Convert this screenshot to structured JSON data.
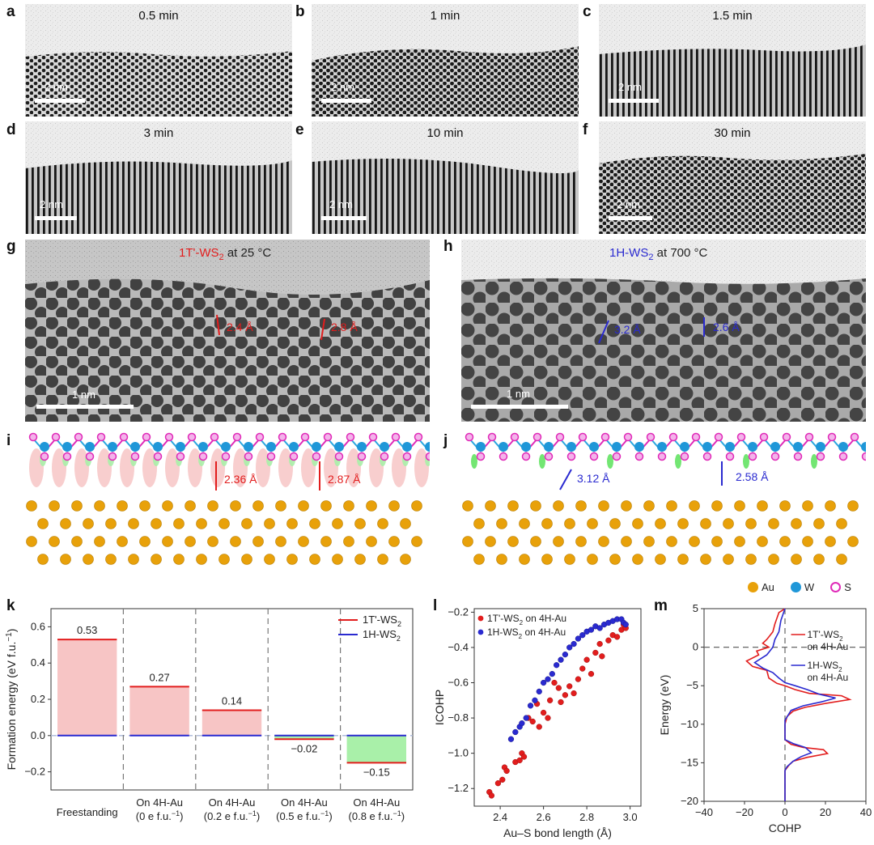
{
  "panels": {
    "a": {
      "letter": "a",
      "time": "0.5 min",
      "scale": "2 nm"
    },
    "b": {
      "letter": "b",
      "time": "1 min",
      "scale": "2 nm"
    },
    "c": {
      "letter": "c",
      "time": "1.5 min",
      "scale": "2 nm"
    },
    "d": {
      "letter": "d",
      "time": "3 min",
      "scale": "2 nm"
    },
    "e": {
      "letter": "e",
      "time": "10 min",
      "scale": "2 nm"
    },
    "f": {
      "letter": "f",
      "time": "30 min",
      "scale": "2 nm"
    },
    "g": {
      "letter": "g",
      "phase": "1T'-WS",
      "phase_sub": "2",
      "temp": " at 25 °C",
      "scale": "1 nm",
      "d1": "2.4 Å",
      "d2": "2.8 Å"
    },
    "h": {
      "letter": "h",
      "phase": "1H-WS",
      "phase_sub": "2",
      "temp": " at 700 °C",
      "scale": "1 nm",
      "d1": "3.2 Å",
      "d2": "2.6 Å"
    },
    "i": {
      "letter": "i",
      "d1": "2.36 Å",
      "d2": "2.87 Å"
    },
    "j": {
      "letter": "j",
      "d1": "3.12 Å",
      "d2": "2.58 Å"
    },
    "k": {
      "letter": "k"
    },
    "l": {
      "letter": "l"
    },
    "m": {
      "letter": "m"
    }
  },
  "atom_legend": [
    {
      "label": "Au",
      "color": "#e8a10a"
    },
    {
      "label": "W",
      "color": "#1f97d8"
    },
    {
      "label": "S",
      "color": "#e02ab8"
    }
  ],
  "colors": {
    "red": "#e21d1d",
    "blue": "#2a2ad0",
    "pink_fill": "#f7c5c5",
    "green_fill": "#a9f0a9"
  },
  "chart_data": [
    {
      "id": "k",
      "type": "bar",
      "ylabel": "Formation energy (eV f.u.",
      "ylabel_sup": "−1",
      "ylabel_end": ")",
      "ylim": [
        -0.3,
        0.7
      ],
      "yticks": [
        "−0.2",
        "0.0",
        "0.2",
        "0.4",
        "0.6"
      ],
      "ytick_values": [
        -0.2,
        0.0,
        0.2,
        0.4,
        0.6
      ],
      "categories": [
        {
          "line1": "Freestanding",
          "line2": "",
          "sup": "",
          "line2_end": ""
        },
        {
          "line1": "On 4H-Au",
          "line2": "(0 e f.u.",
          "sup": "−1",
          "line2_end": ")"
        },
        {
          "line1": "On 4H-Au",
          "line2": "(0.2 e f.u.",
          "sup": "−1",
          "line2_end": ")"
        },
        {
          "line1": "On 4H-Au",
          "line2": "(0.5 e f.u.",
          "sup": "−1",
          "line2_end": ")"
        },
        {
          "line1": "On 4H-Au",
          "line2": "(0.8 e f.u.",
          "sup": "−1",
          "line2_end": ")"
        }
      ],
      "series": [
        {
          "name": "1T'-WS",
          "sub": "2",
          "values": [
            0.53,
            0.27,
            0.14,
            -0.02,
            -0.15
          ]
        },
        {
          "name": "1H-WS",
          "sub": "2",
          "values": [
            0.0,
            0.0,
            0.0,
            0.0,
            0.0
          ]
        }
      ],
      "value_labels": [
        "0.53",
        "0.27",
        "0.14",
        "−0.02",
        "−0.15"
      ],
      "legend": "top-right"
    },
    {
      "id": "l",
      "type": "scatter",
      "xlabel": "Au–S bond length (Å)",
      "ylabel": "ICOHP",
      "xlim": [
        2.28,
        3.05
      ],
      "ylim": [
        -1.3,
        -0.18
      ],
      "xticks": [
        "2.4",
        "2.6",
        "2.8",
        "3.0"
      ],
      "xtick_values": [
        2.4,
        2.6,
        2.8,
        3.0
      ],
      "yticks": [
        "−1.2",
        "−1.0",
        "−0.8",
        "−0.6",
        "−0.4",
        "−0.2"
      ],
      "ytick_values": [
        -1.2,
        -1.0,
        -0.8,
        -0.6,
        -0.4,
        -0.2
      ],
      "series": [
        {
          "name": "1T'-WS",
          "sub": "2",
          "name_end": " on 4H-Au",
          "points": [
            [
              2.35,
              -1.22
            ],
            [
              2.36,
              -1.24
            ],
            [
              2.39,
              -1.17
            ],
            [
              2.41,
              -1.15
            ],
            [
              2.42,
              -1.08
            ],
            [
              2.43,
              -1.1
            ],
            [
              2.47,
              -1.05
            ],
            [
              2.49,
              -1.04
            ],
            [
              2.5,
              -1.0
            ],
            [
              2.51,
              -1.02
            ],
            [
              2.53,
              -0.8
            ],
            [
              2.55,
              -0.82
            ],
            [
              2.57,
              -0.72
            ],
            [
              2.58,
              -0.85
            ],
            [
              2.6,
              -0.77
            ],
            [
              2.62,
              -0.8
            ],
            [
              2.63,
              -0.7
            ],
            [
              2.65,
              -0.6
            ],
            [
              2.67,
              -0.63
            ],
            [
              2.68,
              -0.71
            ],
            [
              2.7,
              -0.67
            ],
            [
              2.72,
              -0.62
            ],
            [
              2.74,
              -0.66
            ],
            [
              2.76,
              -0.58
            ],
            [
              2.78,
              -0.52
            ],
            [
              2.8,
              -0.47
            ],
            [
              2.82,
              -0.55
            ],
            [
              2.84,
              -0.43
            ],
            [
              2.86,
              -0.38
            ],
            [
              2.87,
              -0.45
            ],
            [
              2.9,
              -0.36
            ],
            [
              2.92,
              -0.33
            ],
            [
              2.94,
              -0.34
            ],
            [
              2.96,
              -0.3
            ],
            [
              2.97,
              -0.27
            ],
            [
              2.98,
              -0.29
            ]
          ]
        },
        {
          "name": "1H-WS",
          "sub": "2",
          "name_end": " on 4H-Au",
          "points": [
            [
              2.45,
              -0.92
            ],
            [
              2.47,
              -0.88
            ],
            [
              2.49,
              -0.85
            ],
            [
              2.5,
              -0.83
            ],
            [
              2.52,
              -0.8
            ],
            [
              2.54,
              -0.73
            ],
            [
              2.56,
              -0.7
            ],
            [
              2.58,
              -0.65
            ],
            [
              2.6,
              -0.6
            ],
            [
              2.62,
              -0.58
            ],
            [
              2.64,
              -0.55
            ],
            [
              2.66,
              -0.5
            ],
            [
              2.68,
              -0.47
            ],
            [
              2.7,
              -0.44
            ],
            [
              2.72,
              -0.4
            ],
            [
              2.74,
              -0.38
            ],
            [
              2.76,
              -0.35
            ],
            [
              2.78,
              -0.33
            ],
            [
              2.8,
              -0.31
            ],
            [
              2.82,
              -0.3
            ],
            [
              2.84,
              -0.28
            ],
            [
              2.86,
              -0.29
            ],
            [
              2.88,
              -0.27
            ],
            [
              2.9,
              -0.26
            ],
            [
              2.92,
              -0.25
            ],
            [
              2.94,
              -0.24
            ],
            [
              2.96,
              -0.24
            ],
            [
              2.97,
              -0.26
            ],
            [
              2.98,
              -0.27
            ]
          ]
        }
      ],
      "legend": "top-left"
    },
    {
      "id": "m",
      "type": "line",
      "xlabel": "COHP",
      "ylabel": "Energy (eV)",
      "xlim": [
        -40,
        40
      ],
      "ylim": [
        -20,
        5
      ],
      "xticks": [
        "−40",
        "−20",
        "0",
        "20",
        "40"
      ],
      "xtick_values": [
        -40,
        -20,
        0,
        20,
        40
      ],
      "yticks": [
        "−20",
        "−15",
        "−10",
        "−5",
        "0",
        "5"
      ],
      "ytick_values": [
        -20,
        -15,
        -10,
        -5,
        0,
        5
      ],
      "series": [
        {
          "name": "1T'-WS",
          "sub": "2",
          "name_end": "on 4H-Au",
          "points": [
            [
              0,
              5
            ],
            [
              -3,
              4.5
            ],
            [
              -5,
              3
            ],
            [
              -6,
              2
            ],
            [
              -9,
              1
            ],
            [
              -11,
              0.5
            ],
            [
              -8,
              0
            ],
            [
              -14,
              -0.5
            ],
            [
              -13,
              -1
            ],
            [
              -19,
              -1.8
            ],
            [
              -16,
              -2.5
            ],
            [
              -9,
              -3
            ],
            [
              -8,
              -4
            ],
            [
              -4,
              -4.7
            ],
            [
              0,
              -5
            ],
            [
              5,
              -5.5
            ],
            [
              12,
              -6
            ],
            [
              28,
              -6.3
            ],
            [
              32,
              -6.8
            ],
            [
              20,
              -7.3
            ],
            [
              10,
              -7.8
            ],
            [
              4,
              -8.3
            ],
            [
              1,
              -9
            ],
            [
              0,
              -10
            ],
            [
              0,
              -12
            ],
            [
              3,
              -12.6
            ],
            [
              9,
              -13
            ],
            [
              19,
              -13.3
            ],
            [
              21,
              -13.8
            ],
            [
              11,
              -14.3
            ],
            [
              4,
              -14.8
            ],
            [
              2,
              -15.3
            ],
            [
              0,
              -16
            ],
            [
              0,
              -20
            ]
          ]
        },
        {
          "name": "1H-WS",
          "sub": "2",
          "name_end": "on 4H-Au",
          "points": [
            [
              0,
              5
            ],
            [
              -2,
              3.5
            ],
            [
              -3,
              2
            ],
            [
              -5,
              1
            ],
            [
              -6,
              0
            ],
            [
              -9,
              -1
            ],
            [
              -15,
              -2
            ],
            [
              -11,
              -2.7
            ],
            [
              -6,
              -3.3
            ],
            [
              -3,
              -4
            ],
            [
              0,
              -4.6
            ],
            [
              5,
              -5
            ],
            [
              11,
              -5.5
            ],
            [
              17,
              -6.1
            ],
            [
              25,
              -6.6
            ],
            [
              18,
              -7.1
            ],
            [
              9,
              -7.6
            ],
            [
              3,
              -8.2
            ],
            [
              0,
              -9.5
            ],
            [
              0,
              -12
            ],
            [
              4,
              -12.5
            ],
            [
              10,
              -13
            ],
            [
              13,
              -13.7
            ],
            [
              8,
              -14.2
            ],
            [
              4,
              -14.8
            ],
            [
              1,
              -15.5
            ],
            [
              0,
              -16
            ],
            [
              0,
              -20
            ]
          ]
        }
      ],
      "legend": "top-right"
    }
  ]
}
